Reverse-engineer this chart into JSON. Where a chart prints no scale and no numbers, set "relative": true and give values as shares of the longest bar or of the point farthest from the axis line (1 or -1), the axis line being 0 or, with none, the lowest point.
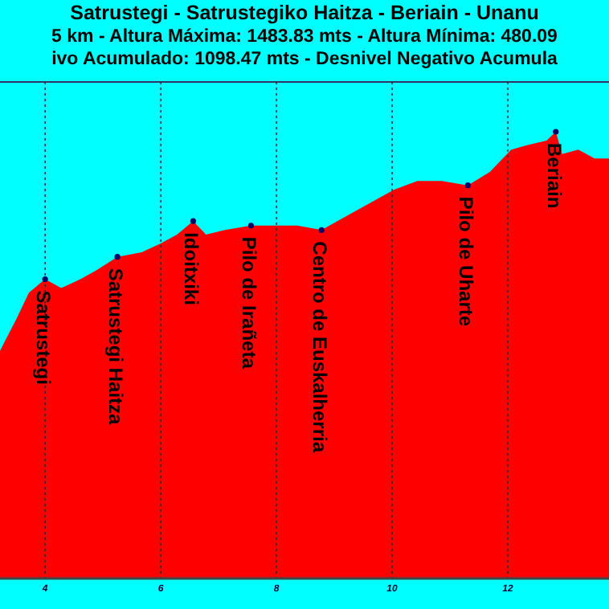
{
  "chart_data": {
    "type": "area",
    "title": "Satrustegi - Satrustegiko Haitza - Beriain - Unanu",
    "subtitle": "5 km - Altura Máxima: 1483.83 mts - Altura Mínima: 480.09",
    "annotations": [
      "ivo Acumulado: 1098.47 mts - Desnivel Negativo Acumula",
      {
        "text": "Satrustegi",
        "x": 4,
        "y": 0.67
      },
      {
        "text": "Satrustegi Haitza",
        "x": 5.25,
        "y": 0.72
      },
      {
        "text": "Idoitxiki",
        "x": 6.56,
        "y": 0.8
      },
      {
        "text": "Pilo de Irañeta",
        "x": 7.56,
        "y": 0.79
      },
      {
        "text": "Centro de Euskalherria",
        "x": 8.78,
        "y": 0.78
      },
      {
        "text": "Pilo de Uharte",
        "x": 11.31,
        "y": 0.88
      },
      {
        "text": "Beriain",
        "x": 12.83,
        "y": 1.0
      }
    ],
    "relative": true,
    "grid": "x",
    "xlim": [
      3.22,
      13.75
    ],
    "xticks": [
      4,
      6,
      8,
      10,
      12
    ],
    "x": [
      3.22,
      3.5,
      3.72,
      4,
      4.28,
      4.61,
      4.89,
      5.25,
      5.67,
      6,
      6.28,
      6.56,
      6.78,
      7.11,
      7.56,
      8.08,
      8.36,
      8.78,
      9.19,
      9.61,
      10.03,
      10.44,
      10.86,
      11.31,
      11.69,
      12.06,
      12.33,
      12.67,
      12.83,
      12.94,
      13.22,
      13.5,
      13.75
    ],
    "series": [
      {
        "color": "#ff0000",
        "values": [
          0.51,
          0.58,
          0.64,
          0.67,
          0.65,
          0.67,
          0.69,
          0.72,
          0.73,
          0.75,
          0.77,
          0.8,
          0.77,
          0.78,
          0.79,
          0.79,
          0.79,
          0.78,
          0.81,
          0.84,
          0.87,
          0.89,
          0.89,
          0.88,
          0.91,
          0.96,
          0.97,
          0.98,
          1.0,
          0.95,
          0.96,
          0.94,
          0.94
        ]
      }
    ]
  }
}
